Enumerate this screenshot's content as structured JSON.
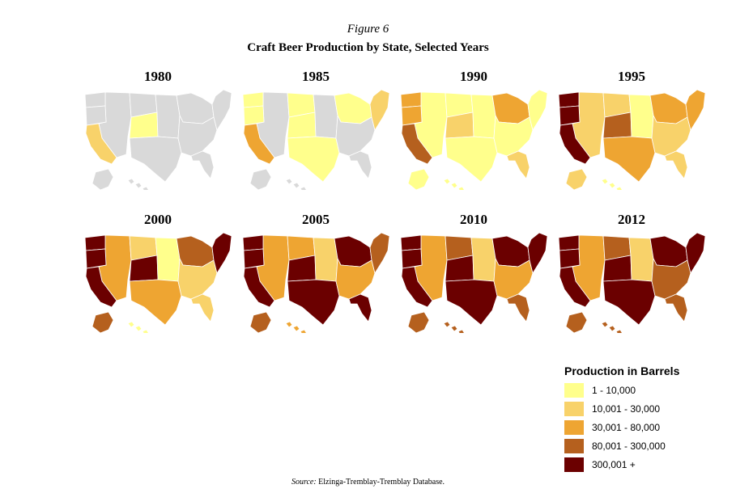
{
  "figure_label": "Figure 6",
  "title": "Craft Beer Production by State, Selected Years",
  "colors": {
    "none": "#d9d9d9",
    "c1": "#ffff8c",
    "c2": "#f8d26a",
    "c3": "#eea532",
    "c4": "#b5601e",
    "c5": "#6b0000"
  },
  "panels": [
    {
      "year": "1980",
      "regions": {
        "west": "none",
        "ca": "c2",
        "or": "none",
        "wa": "none",
        "mtn": "none",
        "co": "c1",
        "plains": "none",
        "tx": "none",
        "mw": "none",
        "south": "none",
        "ne": "none",
        "fl": "none",
        "ak": "none",
        "hi": "none"
      }
    },
    {
      "year": "1985",
      "regions": {
        "west": "none",
        "ca": "c3",
        "or": "c1",
        "wa": "c1",
        "mtn": "c1",
        "co": "c1",
        "plains": "none",
        "tx": "c1",
        "mw": "c1",
        "south": "none",
        "ne": "c2",
        "fl": "none",
        "ak": "none",
        "hi": "none"
      }
    },
    {
      "year": "1990",
      "regions": {
        "west": "c1",
        "ca": "c4",
        "or": "c3",
        "wa": "c3",
        "mtn": "c1",
        "co": "c2",
        "plains": "c1",
        "tx": "c1",
        "mw": "c3",
        "south": "c1",
        "ne": "c1",
        "fl": "c2",
        "ak": "c1",
        "hi": "c1"
      }
    },
    {
      "year": "1995",
      "regions": {
        "west": "c2",
        "ca": "c5",
        "or": "c5",
        "wa": "c5",
        "mtn": "c2",
        "co": "c4",
        "plains": "c1",
        "tx": "c3",
        "mw": "c3",
        "south": "c2",
        "ne": "c3",
        "fl": "c2",
        "ak": "c2",
        "hi": "c1"
      }
    },
    {
      "year": "2000",
      "regions": {
        "west": "c3",
        "ca": "c5",
        "or": "c5",
        "wa": "c5",
        "mtn": "c2",
        "co": "c5",
        "plains": "c1",
        "tx": "c3",
        "mw": "c4",
        "south": "c2",
        "ne": "c5",
        "fl": "c2",
        "ak": "c4",
        "hi": "c1"
      }
    },
    {
      "year": "2005",
      "regions": {
        "west": "c3",
        "ca": "c5",
        "or": "c5",
        "wa": "c5",
        "mtn": "c3",
        "co": "c5",
        "plains": "c2",
        "tx": "c5",
        "mw": "c5",
        "south": "c3",
        "ne": "c4",
        "fl": "c5",
        "ak": "c4",
        "hi": "c3"
      }
    },
    {
      "year": "2010",
      "regions": {
        "west": "c3",
        "ca": "c5",
        "or": "c5",
        "wa": "c5",
        "mtn": "c4",
        "co": "c5",
        "plains": "c2",
        "tx": "c5",
        "mw": "c5",
        "south": "c3",
        "ne": "c5",
        "fl": "c4",
        "ak": "c4",
        "hi": "c4"
      }
    },
    {
      "year": "2012",
      "regions": {
        "west": "c3",
        "ca": "c5",
        "or": "c5",
        "wa": "c5",
        "mtn": "c4",
        "co": "c5",
        "plains": "c2",
        "tx": "c5",
        "mw": "c5",
        "south": "c4",
        "ne": "c5",
        "fl": "c4",
        "ak": "c4",
        "hi": "c4"
      }
    }
  ],
  "legend": {
    "title": "Production in Barrels",
    "items": [
      {
        "label": "1 - 10,000",
        "color": "#ffff8c"
      },
      {
        "label": "10,001 - 30,000",
        "color": "#f8d26a"
      },
      {
        "label": "30,001 - 80,000",
        "color": "#eea532"
      },
      {
        "label": "80,001 - 300,000",
        "color": "#b5601e"
      },
      {
        "label": "300,001 +",
        "color": "#6b0000"
      }
    ]
  },
  "source": {
    "prefix": "Source:",
    "text": "Elzinga-Tremblay-Tremblay Database."
  }
}
